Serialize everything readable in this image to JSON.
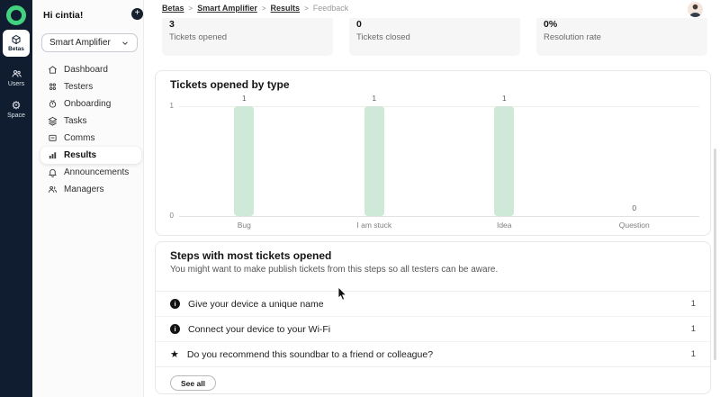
{
  "colors": {
    "rail_bg": "#101d30",
    "accent_green": "#42d27f",
    "bar_green": "#cfe9d8",
    "card_border": "#e7e7e7",
    "stat_bg": "#f6f6f7",
    "sidebar_bg": "#fbfbfb"
  },
  "icons": {
    "plus": "+",
    "star": "★",
    "gear": "⚙",
    "info": "i",
    "breadcrumb_separator": ">"
  },
  "rail": {
    "items": [
      {
        "label": "Betas",
        "icon": "cube-icon",
        "active": true
      },
      {
        "label": "Users",
        "icon": "users-icon"
      },
      {
        "label": "Space",
        "icon": "gear-icon"
      }
    ]
  },
  "sidebar": {
    "greeting": "Hi cintia!",
    "beta_selector": {
      "value": "Smart Amplifier"
    },
    "items": [
      {
        "label": "Dashboard",
        "icon": "home-icon"
      },
      {
        "label": "Testers",
        "icon": "group-grid-icon"
      },
      {
        "label": "Onboarding",
        "icon": "hand-icon"
      },
      {
        "label": "Tasks",
        "icon": "layers-icon"
      },
      {
        "label": "Comms",
        "icon": "chat-icon"
      },
      {
        "label": "Results",
        "icon": "bar-chart-icon",
        "active": true
      },
      {
        "label": "Announcements",
        "icon": "bell-icon"
      },
      {
        "label": "Managers",
        "icon": "people-icon"
      }
    ]
  },
  "breadcrumb": {
    "items": [
      "Betas",
      "Smart Amplifier",
      "Results",
      "Feedback"
    ]
  },
  "stats": [
    {
      "value": "3",
      "label": "Tickets opened"
    },
    {
      "value": "0",
      "label": "Tickets closed"
    },
    {
      "value": "0%",
      "label": "Resolution rate"
    }
  ],
  "chart_data": {
    "type": "bar",
    "title": "Tickets opened by type",
    "categories": [
      "Bug",
      "I am stuck",
      "Idea",
      "Question"
    ],
    "values": [
      1,
      1,
      1,
      0
    ],
    "value_labels": [
      "1",
      "1",
      "1",
      "0"
    ],
    "y_ticks": [
      "1",
      "0"
    ],
    "ylim": [
      0,
      1
    ],
    "grid": true,
    "legend": "none",
    "bar_color": "#cfe9d8"
  },
  "steps_card": {
    "title": "Steps with most tickets opened",
    "subtitle": "You might want to make publish tickets from this steps so all testers can be aware.",
    "items": [
      {
        "icon": "info-icon",
        "label": "Give your device a unique name",
        "count": "1"
      },
      {
        "icon": "info-icon",
        "label": "Connect your device to your Wi-Fi",
        "count": "1"
      },
      {
        "icon": "star-icon",
        "label": "Do you recommend this soundbar to a friend or colleague?",
        "count": "1"
      }
    ],
    "see_all_label": "See all"
  }
}
